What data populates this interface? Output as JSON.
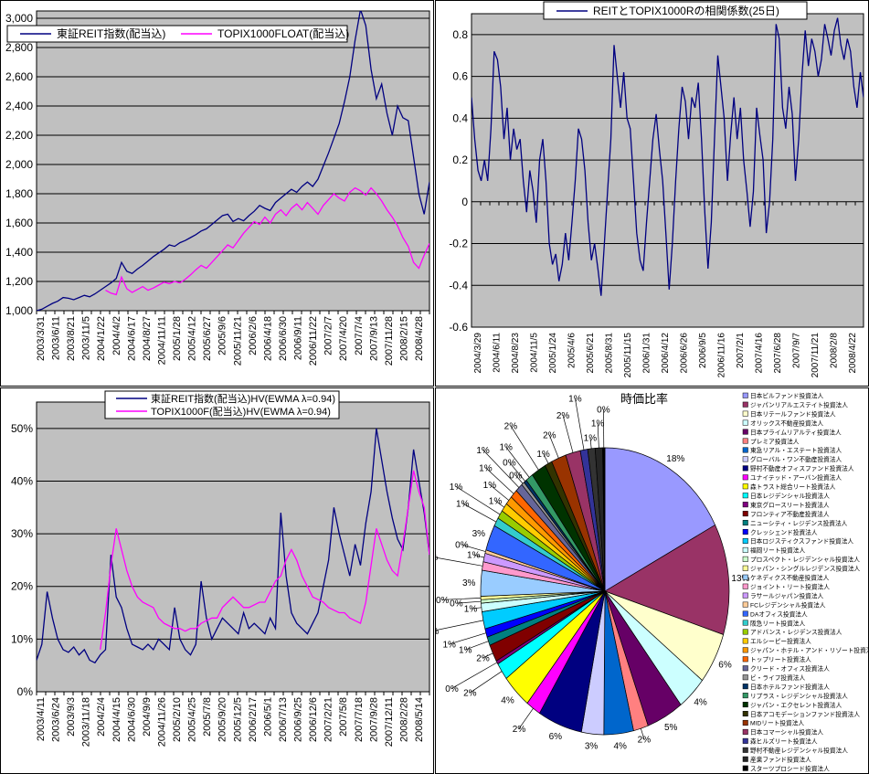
{
  "colors": {
    "plot_bg": "#C0C0C0",
    "grid": "#000000",
    "border": "#000000",
    "reit_series": "#000080",
    "topix_series": "#FF00FF"
  },
  "chart_data": [
    {
      "id": "price_index",
      "type": "line",
      "legend_position": "top-left",
      "y_ticks": [
        "3,000",
        "2,800",
        "2,600",
        "2,400",
        "2,200",
        "2,000",
        "1,800",
        "1,600",
        "1,400",
        "1,200",
        "1,000"
      ],
      "y_grid": [
        3000,
        2800,
        2600,
        2400,
        2200,
        2000,
        1800,
        1600,
        1400,
        1200,
        1000
      ],
      "ylim": [
        1000,
        3050
      ],
      "x_ticks": [
        "2003/3/31",
        "2003/6/11",
        "2003/8/21",
        "2003/11/5",
        "2004/1/22",
        "2004/4/2",
        "2004/6/17",
        "2004/8/27",
        "2004/11/11",
        "2005/1/28",
        "2005/4/12",
        "2005/6/27",
        "2005/9/6",
        "2005/11/21",
        "2006/2/6",
        "2006/4/18",
        "2006/6/30",
        "2006/9/11",
        "2006/11/22",
        "2007/2/7",
        "2007/4/20",
        "2007/7/4",
        "2007/9/13",
        "2007/11/28",
        "2008/2/15",
        "2008/4/28"
      ],
      "series": [
        {
          "name": "東証REIT指数(配当込)",
          "color": "#000080",
          "values": [
            1000,
            1010,
            1030,
            1050,
            1065,
            1090,
            1085,
            1075,
            1090,
            1105,
            1095,
            1115,
            1140,
            1165,
            1190,
            1220,
            1330,
            1270,
            1255,
            1285,
            1310,
            1340,
            1370,
            1395,
            1420,
            1450,
            1440,
            1465,
            1480,
            1500,
            1520,
            1545,
            1560,
            1590,
            1620,
            1650,
            1660,
            1610,
            1630,
            1615,
            1650,
            1680,
            1720,
            1700,
            1685,
            1740,
            1770,
            1800,
            1830,
            1810,
            1850,
            1880,
            1850,
            1900,
            1990,
            2080,
            2180,
            2280,
            2430,
            2600,
            2850,
            3060,
            2950,
            2650,
            2450,
            2550,
            2350,
            2200,
            2400,
            2320,
            2300,
            2050,
            1800,
            1660,
            1880
          ]
        },
        {
          "name": "TOPIX1000FLOAT(配当込)",
          "color": "#FF00FF",
          "values": [
            null,
            null,
            null,
            null,
            null,
            null,
            null,
            null,
            null,
            null,
            null,
            null,
            null,
            1140,
            1120,
            1110,
            1230,
            1150,
            1125,
            1145,
            1165,
            1140,
            1155,
            1175,
            1195,
            1185,
            1200,
            1190,
            1215,
            1245,
            1280,
            1310,
            1290,
            1330,
            1370,
            1410,
            1450,
            1430,
            1480,
            1530,
            1570,
            1610,
            1590,
            1640,
            1600,
            1660,
            1690,
            1650,
            1700,
            1730,
            1690,
            1740,
            1700,
            1660,
            1720,
            1760,
            1800,
            1770,
            1750,
            1810,
            1840,
            1820,
            1790,
            1840,
            1800,
            1750,
            1690,
            1640,
            1580,
            1500,
            1440,
            1330,
            1290,
            1380,
            1460
          ]
        }
      ]
    },
    {
      "id": "correlation",
      "type": "line",
      "title": "REITとTOPIX1000Rの相関係数(25日)",
      "y_ticks": [
        "0.8",
        "0.6",
        "0.4",
        "0.2",
        "0",
        "-0.2",
        "-0.4",
        "-0.6"
      ],
      "y_grid": [
        0.8,
        0.6,
        0.4,
        0.2,
        0,
        -0.2,
        -0.4,
        -0.6
      ],
      "ylim": [
        -0.6,
        0.9
      ],
      "x_ticks": [
        "2004/3/29",
        "2004/6/11",
        "2004/8/23",
        "2004/11/5",
        "2005/1/24",
        "2005/4/6",
        "2005/6/21",
        "2005/8/31",
        "2005/11/15",
        "2006/1/31",
        "2006/4/12",
        "2006/6/26",
        "2006/9/5",
        "2006/11/16",
        "2007/2/1",
        "2007/4/16",
        "2007/6/28",
        "2007/9/7",
        "2007/11/21",
        "2008/2/8",
        "2008/4/22"
      ],
      "series": [
        {
          "name": "REITとTOPIX1000Rの相関係数(25日)",
          "color": "#000080",
          "values": [
            0.5,
            0.3,
            0.15,
            0.1,
            0.2,
            0.1,
            0.35,
            0.72,
            0.68,
            0.55,
            0.3,
            0.45,
            0.2,
            0.35,
            0.25,
            0.3,
            0.1,
            -0.05,
            0.15,
            0.05,
            -0.1,
            0.2,
            0.3,
            0.1,
            -0.2,
            -0.3,
            -0.25,
            -0.38,
            -0.3,
            -0.15,
            -0.28,
            -0.1,
            0.1,
            0.35,
            0.3,
            0.15,
            -0.1,
            -0.28,
            -0.2,
            -0.32,
            -0.45,
            -0.2,
            0.05,
            0.3,
            0.75,
            0.6,
            0.45,
            0.62,
            0.4,
            0.35,
            0.1,
            -0.15,
            -0.28,
            -0.33,
            -0.1,
            0.1,
            0.3,
            0.42,
            0.25,
            0.1,
            -0.15,
            -0.42,
            -0.2,
            0.1,
            0.35,
            0.55,
            0.48,
            0.3,
            0.5,
            0.45,
            0.57,
            0.3,
            -0.05,
            -0.32,
            -0.1,
            0.3,
            0.7,
            0.55,
            0.4,
            0.1,
            0.32,
            0.5,
            0.3,
            0.45,
            0.2,
            0.05,
            -0.12,
            0.05,
            0.45,
            0.32,
            0.2,
            -0.15,
            0,
            0.3,
            0.85,
            0.78,
            0.45,
            0.35,
            0.55,
            0.42,
            0.1,
            0.3,
            0.6,
            0.82,
            0.65,
            0.78,
            0.72,
            0.6,
            0.68,
            0.85,
            0.78,
            0.7,
            0.82,
            0.88,
            0.75,
            0.68,
            0.78,
            0.72,
            0.55,
            0.45,
            0.62,
            0.5
          ]
        }
      ]
    },
    {
      "id": "volatility",
      "type": "line",
      "y_ticks": [
        "50%",
        "40%",
        "30%",
        "20%",
        "10%",
        "0%"
      ],
      "y_grid": [
        50,
        40,
        30,
        20,
        10,
        0
      ],
      "ylim": [
        0,
        55
      ],
      "x_ticks": [
        "2003/4/11",
        "2003/6/24",
        "2003/9/3",
        "2003/11/18",
        "2004/2/4",
        "2004/4/15",
        "2004/6/30",
        "2004/9/9",
        "2004/11/26",
        "2005/2/10",
        "2005/4/25",
        "2005/7/8",
        "2005/9/20",
        "2005/12/5",
        "2006/2/17",
        "2006/5/1",
        "2006/7/13",
        "2006/9/25",
        "2006/12/6",
        "2007/2/21",
        "2007/5/8",
        "2007/7/18",
        "2007/9/28",
        "2007/12/11",
        "2008/2/28",
        "2008/5/14"
      ],
      "series": [
        {
          "name": "東証REIT指数(配当込)HV(EWMA λ=0.94)",
          "color": "#000080",
          "values": [
            6,
            9,
            19,
            14,
            10,
            8,
            7.5,
            8.5,
            7,
            8,
            6,
            5.5,
            7,
            8,
            26,
            18,
            16,
            12,
            9,
            8.5,
            8,
            9,
            8,
            10,
            9,
            8,
            16,
            10,
            8,
            7,
            9,
            21,
            14,
            10,
            12,
            14,
            13,
            12,
            11,
            15,
            12,
            13,
            12,
            11,
            14,
            12,
            34,
            22,
            15,
            13,
            12,
            11,
            13,
            15,
            20,
            25,
            35,
            30,
            26,
            22,
            28,
            24,
            32,
            38,
            50,
            44,
            38,
            33,
            29,
            27,
            35,
            46,
            40,
            34,
            26
          ]
        },
        {
          "name": "TOPIX1000F(配当込)HV(EWMA λ=0.94)",
          "color": "#FF00FF",
          "values": [
            null,
            null,
            null,
            null,
            null,
            null,
            null,
            null,
            null,
            null,
            null,
            null,
            8,
            15,
            24,
            31,
            27,
            23,
            20,
            18,
            17,
            16.5,
            16,
            14,
            13,
            12.5,
            12,
            12,
            11.5,
            12,
            12,
            13,
            13.5,
            14,
            14,
            16,
            17,
            18,
            17,
            16,
            16,
            16.5,
            17,
            17,
            19,
            21,
            22,
            25,
            27,
            25,
            22,
            20,
            18,
            17.5,
            17,
            16,
            15.5,
            15,
            15,
            14,
            13.5,
            13,
            17,
            24,
            31,
            28,
            25,
            23,
            22,
            28,
            35,
            42,
            38,
            35,
            26
          ]
        }
      ]
    },
    {
      "id": "market_cap",
      "type": "pie",
      "title": "時価比率",
      "slices": [
        {
          "name": "日本ビルファンド投資法人",
          "label": "18%",
          "value": 18,
          "color": "#9999FF"
        },
        {
          "name": "ジャパンリアルエステイト投資法人",
          "label": "13%",
          "value": 13,
          "color": "#993366"
        },
        {
          "name": "日本リテールファンド投資法人",
          "label": "6%",
          "value": 6,
          "color": "#FFFFCC"
        },
        {
          "name": "オリックス不動産投資法人",
          "label": "4%",
          "value": 4,
          "color": "#CCFFFF"
        },
        {
          "name": "日本プライムリアルティ投資法人",
          "label": "5%",
          "value": 5,
          "color": "#660066"
        },
        {
          "name": "プレミア投資法人",
          "label": "2%",
          "value": 2,
          "color": "#FF8080"
        },
        {
          "name": "東急リアル・エステート投資法人",
          "label": "4%",
          "value": 4,
          "color": "#0066CC"
        },
        {
          "name": "グローバル・ワン不動産投資法人",
          "label": "3%",
          "value": 3,
          "color": "#CCCCFF"
        },
        {
          "name": "野村不動産オフィスファンド投資法人",
          "label": "6%",
          "value": 6,
          "color": "#000080"
        },
        {
          "name": "ユナイテッド・アーバン投資法人",
          "label": "2%",
          "value": 2,
          "color": "#FF00FF"
        },
        {
          "name": "森トラスト総合リート投資法人",
          "label": "4%",
          "value": 4,
          "color": "#FFFF00"
        },
        {
          "name": "日本レジデンシャル投資法人",
          "label": "2%",
          "value": 2,
          "color": "#00FFFF"
        },
        {
          "name": "東京グロースリート投資法人",
          "label": "0%",
          "value": 0.4,
          "color": "#800080"
        },
        {
          "name": "フロンティア不動産投資法人",
          "label": "2%",
          "value": 2,
          "color": "#800000"
        },
        {
          "name": "ニューシティ・レジデンス投資法人",
          "label": "1%",
          "value": 1,
          "color": "#008080"
        },
        {
          "name": "クレッシェンド投資法人",
          "label": "1%",
          "value": 1,
          "color": "#0000FF"
        },
        {
          "name": "日本ロジスティクスファンド投資法人",
          "label": "2%",
          "value": 2,
          "color": "#00CCFF"
        },
        {
          "name": "福岡リート投資法人",
          "label": "1%",
          "value": 1,
          "color": "#CCFFFF"
        },
        {
          "name": "プロスペクト・レジデンシャル投資法人",
          "label": "0%",
          "value": 0.4,
          "color": "#CCFFCC"
        },
        {
          "name": "ジャパン・シングルレジデンス投資法人",
          "label": "0%",
          "value": 0.4,
          "color": "#FFFF99"
        },
        {
          "name": "ケネディクス不動産投資法人",
          "label": "3%",
          "value": 3,
          "color": "#99CCFF"
        },
        {
          "name": "ジョイント・リート投資法人",
          "label": "1%",
          "value": 1,
          "color": "#FF99CC"
        },
        {
          "name": "ラサールジャパン投資法人",
          "label": "1%",
          "value": 1,
          "color": "#CC99FF"
        },
        {
          "name": "FCレジデンシャル投資法人",
          "label": "0%",
          "value": 0.4,
          "color": "#FFCC99"
        },
        {
          "name": "DAオフィス投資法人",
          "label": "3%",
          "value": 3,
          "color": "#3366FF"
        },
        {
          "name": "阪急リート投資法人",
          "label": "1%",
          "value": 1,
          "color": "#33CCCC"
        },
        {
          "name": "アドバンス・レジデンス投資法人",
          "label": "1%",
          "value": 1,
          "color": "#99CC00"
        },
        {
          "name": "エルシーピー投資法人",
          "label": "1%",
          "value": 1,
          "color": "#FFCC00"
        },
        {
          "name": "ジャパン・ホテル・アンド・リゾート投資法人",
          "label": "1%",
          "value": 1,
          "color": "#FF9900"
        },
        {
          "name": "トップリート投資法人",
          "label": "1%",
          "value": 1,
          "color": "#FF6600"
        },
        {
          "name": "クリード・オフィス投資法人",
          "label": "1%",
          "value": 1,
          "color": "#666699"
        },
        {
          "name": "ビ・ライフ投資法人",
          "label": "0%",
          "value": 0.4,
          "color": "#969696"
        },
        {
          "name": "日本ホテルファンド投資法人",
          "label": "0%",
          "value": 0.4,
          "color": "#003366"
        },
        {
          "name": "リプラス・レジデンシャル投資法人",
          "label": "1%",
          "value": 1,
          "color": "#339966"
        },
        {
          "name": "ジャパン・エクセレント投資法人",
          "label": "2%",
          "value": 2,
          "color": "#003300"
        },
        {
          "name": "日本アコモデーションファンド投資法人",
          "label": "1%",
          "value": 1,
          "color": "#333300"
        },
        {
          "name": "MIDリート投資法人",
          "label": "2%",
          "value": 2,
          "color": "#993300"
        },
        {
          "name": "日本コマーシャル投資法人",
          "label": "2%",
          "value": 2,
          "color": "#993366"
        },
        {
          "name": "森ヒルズリート投資法人",
          "label": "1%",
          "value": 1,
          "color": "#333399"
        },
        {
          "name": "野村不動産レジデンシャル投資法人",
          "label": "1%",
          "value": 1,
          "color": "#333333"
        },
        {
          "name": "産業ファンド投資法人",
          "label": "1%",
          "value": 1,
          "color": "#262626"
        },
        {
          "name": "スターツプロシード投資法人",
          "label": "0%",
          "value": 0.3,
          "color": "#000000"
        }
      ]
    }
  ]
}
